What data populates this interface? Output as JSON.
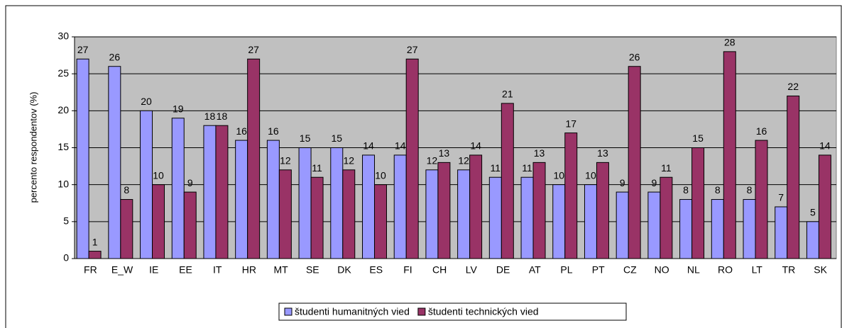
{
  "chart_data": {
    "type": "bar",
    "y_label": "percento respondentov (%)",
    "categories": [
      "FR",
      "E_W",
      "IE",
      "EE",
      "IT",
      "HR",
      "MT",
      "SE",
      "DK",
      "ES",
      "FI",
      "CH",
      "LV",
      "DE",
      "AT",
      "PL",
      "PT",
      "CZ",
      "NO",
      "NL",
      "RO",
      "LT",
      "TR",
      "SK"
    ],
    "series": [
      {
        "name": "študenti humanitných vied",
        "color": "#9999ff",
        "values": [
          27,
          26,
          20,
          19,
          18,
          16,
          16,
          15,
          15,
          14,
          14,
          12,
          12,
          11,
          11,
          10,
          10,
          9,
          9,
          8,
          8,
          8,
          7,
          5
        ]
      },
      {
        "name": "študenti technických vied",
        "color": "#993366",
        "values": [
          1,
          8,
          10,
          9,
          18,
          27,
          12,
          11,
          12,
          10,
          27,
          13,
          14,
          21,
          13,
          17,
          13,
          26,
          11,
          15,
          28,
          16,
          22,
          14
        ]
      }
    ],
    "ylim": [
      0,
      30
    ],
    "yticks": [
      0,
      5,
      10,
      15,
      20,
      25,
      30
    ],
    "grid": true,
    "legend": "bottom"
  }
}
